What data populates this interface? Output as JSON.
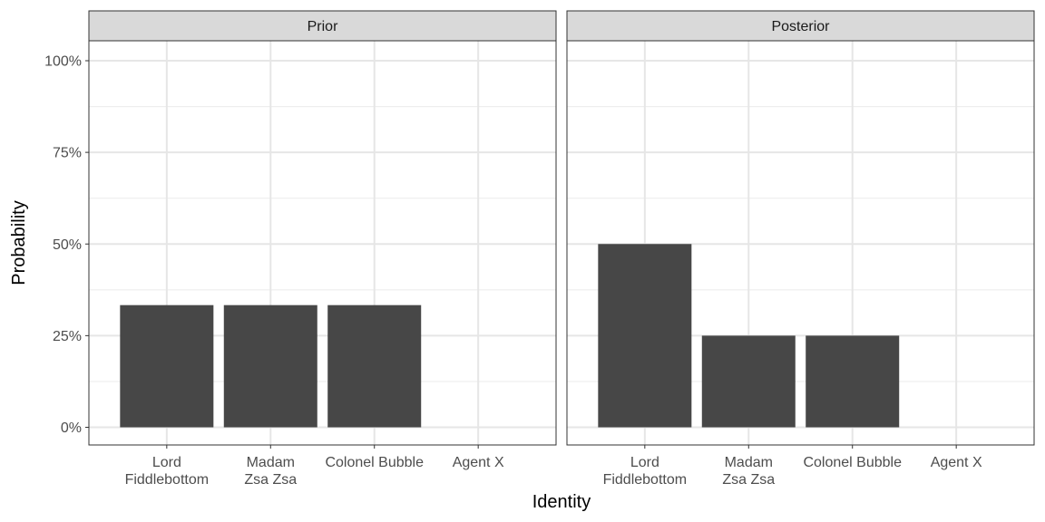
{
  "chart_data": {
    "type": "bar",
    "xlabel": "Identity",
    "ylabel": "Probability",
    "ylim": [
      0,
      1.04
    ],
    "yticks": [
      {
        "value": 0,
        "label": "0%"
      },
      {
        "value": 0.25,
        "label": "25%"
      },
      {
        "value": 0.5,
        "label": "50%"
      },
      {
        "value": 0.75,
        "label": "75%"
      },
      {
        "value": 1.0,
        "label": "100%"
      }
    ],
    "categories": [
      [
        "Lord",
        "Fiddlebottom"
      ],
      [
        "Madam",
        "Zsa Zsa"
      ],
      [
        "Colonel Bubble"
      ],
      [
        "Agent X"
      ]
    ],
    "grid": true,
    "bar_color": "#474747",
    "panels": [
      {
        "title": "Prior",
        "values": [
          0.3333,
          0.3333,
          0.3333,
          0
        ]
      },
      {
        "title": "Posterior",
        "values": [
          0.5,
          0.25,
          0.25,
          0
        ]
      }
    ]
  }
}
